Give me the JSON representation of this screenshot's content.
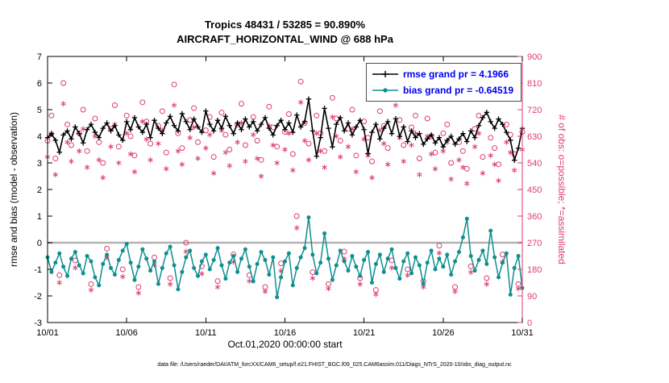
{
  "caption": "data file: /Users/raeder/DAI/ATM_forcXX/CAM6_setup/f.e21.FHIST_BGC.f09_025.CAM6assim.011/Diags_NTrS_2020-10/obs_diag_output.nc",
  "chart_data": {
    "type": "line",
    "title": "Tropics 48431 / 53285 = 90.890%",
    "subtitle": "AIRCRAFT_HORIZONTAL_WIND @ 688 hPa",
    "xlabel": "Oct.01,2020 00:00:00 start",
    "ylabel_left": "rmse and bias (model - observation)",
    "ylabel_right": "# of obs: o=possible; *=assimilated",
    "ylim_left": [
      -3,
      7
    ],
    "ylim_right": [
      0,
      900
    ],
    "yticks_left": [
      -3,
      -2,
      -1,
      0,
      1,
      2,
      3,
      4,
      5,
      6,
      7
    ],
    "yticks_right": [
      0,
      90,
      180,
      270,
      360,
      450,
      540,
      630,
      720,
      810,
      900
    ],
    "xticks": {
      "labels": [
        "10/01",
        "10/06",
        "10/11",
        "10/16",
        "10/21",
        "10/26",
        "10/31"
      ],
      "days": [
        0,
        5,
        10,
        15,
        20,
        25,
        30
      ],
      "span_days": 30
    },
    "x_bins_per_day": 4,
    "grid": false,
    "legend_position": "top-right-inside",
    "legend_text_color": "#0000ee",
    "zero_line_color": "#b3b3b3",
    "right_axis_color": "#dd3c6f",
    "series": [
      {
        "name": "rmse",
        "legend_label": "rmse grand pr = 4.1966",
        "axis": "left",
        "marker": "plus",
        "color": "#000000",
        "values": [
          3.95,
          4.1,
          3.85,
          3.4,
          4.05,
          4.2,
          3.9,
          4.35,
          4.1,
          3.75,
          4.25,
          4.45,
          4.15,
          3.95,
          4.3,
          4.5,
          4.2,
          4.4,
          4.05,
          3.85,
          4.55,
          4.25,
          4.7,
          4.35,
          4.15,
          4.45,
          3.95,
          4.6,
          4.3,
          4.1,
          4.5,
          4.75,
          4.4,
          4.2,
          4.85,
          4.55,
          4.25,
          4.65,
          4.35,
          4.15,
          4.95,
          4.45,
          4.2,
          4.6,
          4.3,
          4.75,
          4.4,
          4.1,
          4.5,
          4.25,
          4.65,
          4.35,
          4.55,
          4.2,
          4.45,
          4.7,
          4.3,
          4.05,
          4.4,
          4.6,
          4.25,
          4.5,
          4.15,
          4.8,
          4.35,
          4.55,
          5.4,
          4.2,
          3.25,
          3.95,
          5.05,
          4.3,
          3.6,
          4.45,
          4.7,
          4.2,
          4.5,
          4.05,
          4.35,
          4.6,
          4.25,
          3.35,
          4.15,
          4.45,
          3.9,
          4.3,
          4.55,
          4.1,
          4.66,
          4.0,
          4.35,
          3.8,
          4.2,
          3.95,
          4.1,
          3.7,
          3.9,
          4.05,
          3.75,
          3.95,
          3.6,
          3.85,
          4.0,
          3.7,
          3.9,
          4.1,
          3.8,
          4.2,
          3.95,
          4.4,
          4.7,
          4.9,
          4.55,
          4.3,
          4.65,
          4.45,
          4.15,
          3.85,
          3.1,
          3.55,
          4.3
        ]
      },
      {
        "name": "bias",
        "legend_label": "bias grand pr = -0.64519",
        "axis": "left",
        "marker": "dot",
        "color": "#0f8f8f",
        "values": [
          -0.55,
          -1.1,
          -0.75,
          -0.4,
          -0.9,
          -1.25,
          -0.6,
          -0.35,
          -0.85,
          -1.15,
          -0.5,
          -0.7,
          -1.3,
          -1.6,
          -0.8,
          -0.45,
          -0.95,
          -1.2,
          -0.65,
          -0.3,
          -0.05,
          -0.75,
          -1.4,
          -0.9,
          -0.25,
          -0.6,
          -1.05,
          -0.7,
          -1.55,
          -0.95,
          -0.4,
          -0.15,
          -0.85,
          -1.75,
          -1.1,
          -0.55,
          -0.3,
          -0.95,
          -1.25,
          -0.7,
          -0.45,
          -1.0,
          -0.65,
          -0.2,
          -0.85,
          -1.35,
          -0.75,
          -0.5,
          -1.1,
          -0.6,
          -0.25,
          -0.9,
          -1.45,
          -0.8,
          -0.35,
          -0.65,
          -1.2,
          -0.55,
          -2.05,
          -1.3,
          -0.7,
          -0.4,
          -1.6,
          -0.95,
          -0.55,
          -0.2,
          0.95,
          -0.45,
          -1.15,
          -0.75,
          0.35,
          -0.6,
          -1.4,
          -0.85,
          -0.3,
          -0.7,
          -1.05,
          -0.5,
          -0.9,
          -1.25,
          -0.65,
          -0.35,
          -1.5,
          -0.8,
          -0.45,
          -1.1,
          -0.6,
          -0.25,
          -0.95,
          -1.35,
          -0.7,
          -0.4,
          -1.15,
          -0.55,
          -0.85,
          -1.55,
          -0.75,
          -0.3,
          -1.0,
          -0.6,
          -0.9,
          -0.45,
          -1.2,
          -0.7,
          -0.35,
          0.2,
          0.9,
          -0.5,
          -1.05,
          -0.65,
          -0.3,
          -0.8,
          0.45,
          -0.55,
          -1.3,
          -0.75,
          -0.4,
          -1.95,
          -0.95,
          -0.5,
          -1.7
        ]
      },
      {
        "name": "possible",
        "legend_label": "",
        "axis": "right",
        "marker": "circle-open",
        "color": "#dd3c6f",
        "values": [
          615,
          700,
          555,
          160,
          810,
          670,
          600,
          210,
          640,
          720,
          580,
          130,
          690,
          610,
          540,
          250,
          655,
          735,
          595,
          180,
          700,
          630,
          565,
          120,
          745,
          680,
          605,
          220,
          665,
          715,
          575,
          150,
          805,
          640,
          590,
          270,
          685,
          725,
          610,
          190,
          650,
          695,
          560,
          140,
          710,
          635,
          585,
          230,
          670,
          740,
          600,
          160,
          695,
          615,
          550,
          120,
          730,
          660,
          595,
          200,
          645,
          705,
          570,
          360,
          815,
          675,
          605,
          170,
          700,
          640,
          580,
          130,
          760,
          690,
          615,
          240,
          655,
          720,
          565,
          150,
          680,
          625,
          545,
          110,
          715,
          665,
          590,
          210,
          805,
          685,
          600,
          180,
          660,
          700,
          555,
          140,
          690,
          630,
          575,
          260,
          640,
          670,
          540,
          120,
          610,
          580,
          520,
          190,
          655,
          700,
          560,
          150,
          625,
          590,
          535,
          230,
          670,
          635,
          570,
          130,
          645
        ]
      },
      {
        "name": "assimilated",
        "legend_label": "",
        "axis": "right",
        "marker": "asterisk",
        "color": "#dd3c6f",
        "values": [
          560,
          640,
          500,
          135,
          740,
          610,
          545,
          185,
          580,
          655,
          525,
          110,
          630,
          550,
          490,
          220,
          595,
          670,
          540,
          155,
          640,
          570,
          510,
          100,
          680,
          620,
          550,
          195,
          605,
          650,
          520,
          130,
          735,
          580,
          535,
          240,
          625,
          660,
          555,
          165,
          590,
          635,
          505,
          120,
          650,
          575,
          530,
          205,
          610,
          675,
          545,
          140,
          635,
          555,
          495,
          105,
          665,
          600,
          540,
          175,
          585,
          640,
          515,
          320,
          745,
          615,
          550,
          150,
          640,
          580,
          525,
          115,
          695,
          630,
          560,
          215,
          595,
          655,
          510,
          130,
          620,
          565,
          490,
          95,
          650,
          605,
          535,
          185,
          735,
          625,
          545,
          160,
          600,
          640,
          500,
          120,
          630,
          570,
          520,
          235,
          580,
          610,
          485,
          105,
          550,
          525,
          470,
          170,
          595,
          640,
          505,
          130,
          565,
          535,
          480,
          205,
          610,
          575,
          515,
          115,
          585
        ]
      }
    ]
  }
}
